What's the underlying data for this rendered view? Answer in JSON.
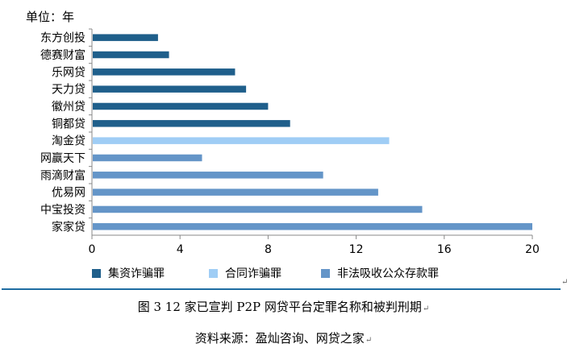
{
  "chart_data": {
    "type": "bar",
    "orientation": "horizontal",
    "unit_label": "单位：年",
    "categories": [
      "东方创投",
      "德赛财富",
      "乐网贷",
      "天力贷",
      "徽州贷",
      "铜都贷",
      "淘金贷",
      "网赢天下",
      "雨滴财富",
      "优易网",
      "中宝投资",
      "家家贷"
    ],
    "values": [
      3,
      3.5,
      6.5,
      7,
      8,
      9,
      13.5,
      5,
      10.5,
      13,
      15,
      20
    ],
    "crime_index": [
      0,
      0,
      0,
      0,
      0,
      0,
      1,
      2,
      2,
      2,
      2,
      2
    ],
    "series": [
      {
        "name": "集资诈骗罪",
        "color": "#1f5f8b"
      },
      {
        "name": "合同诈骗罪",
        "color": "#9fcdf5"
      },
      {
        "name": "非法吸收公众存款罪",
        "color": "#6495c8"
      }
    ],
    "xlim": [
      0,
      20
    ],
    "xticks": [
      0,
      4,
      8,
      12,
      16,
      20
    ],
    "legend_position": "bottom"
  },
  "caption": "图 3 12 家已宣判 P2P 网贷平台定罪名称和被判刑期",
  "source": "资料来源：盈灿咨询、网贷之家"
}
